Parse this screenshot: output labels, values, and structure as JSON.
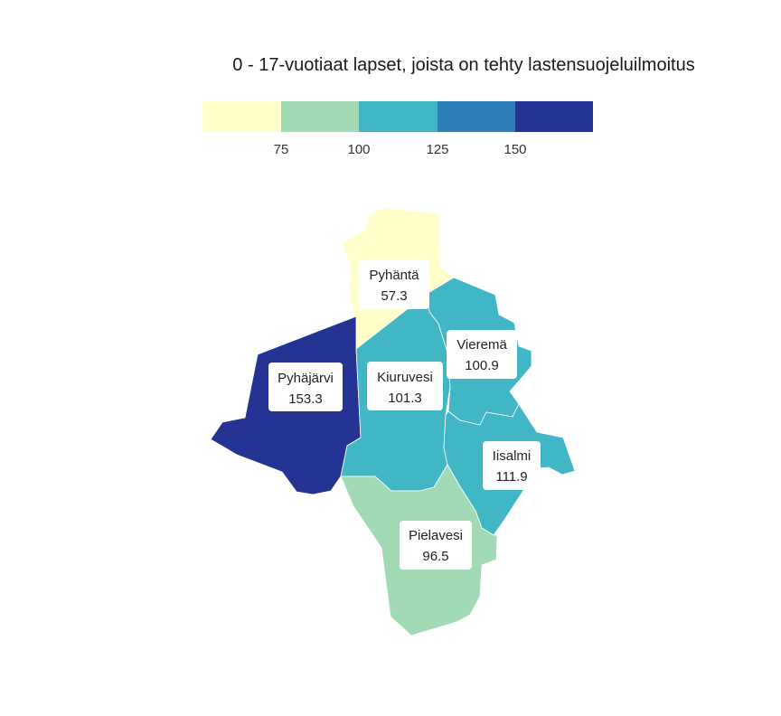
{
  "title": "0 - 17-vuotiaat lapset, joista on tehty lastensuojeluilmoitus",
  "legend": {
    "colors": [
      "#ffffcc",
      "#a1dab4",
      "#41b6c4",
      "#2c7fb8",
      "#253494"
    ],
    "ticks": [
      "75",
      "100",
      "125",
      "150"
    ]
  },
  "regions": [
    {
      "name": "Pyhäntä",
      "value": "57.3",
      "color": "#ffffcc"
    },
    {
      "name": "Pyhäjärvi",
      "value": "153.3",
      "color": "#253494"
    },
    {
      "name": "Kiuruvesi",
      "value": "101.3",
      "color": "#41b6c4"
    },
    {
      "name": "Vieremä",
      "value": "100.9",
      "color": "#41b6c4"
    },
    {
      "name": "Iisalmi",
      "value": "111.9",
      "color": "#41b6c4"
    },
    {
      "name": "Pielavesi",
      "value": "96.5",
      "color": "#a1dab4"
    }
  ]
}
